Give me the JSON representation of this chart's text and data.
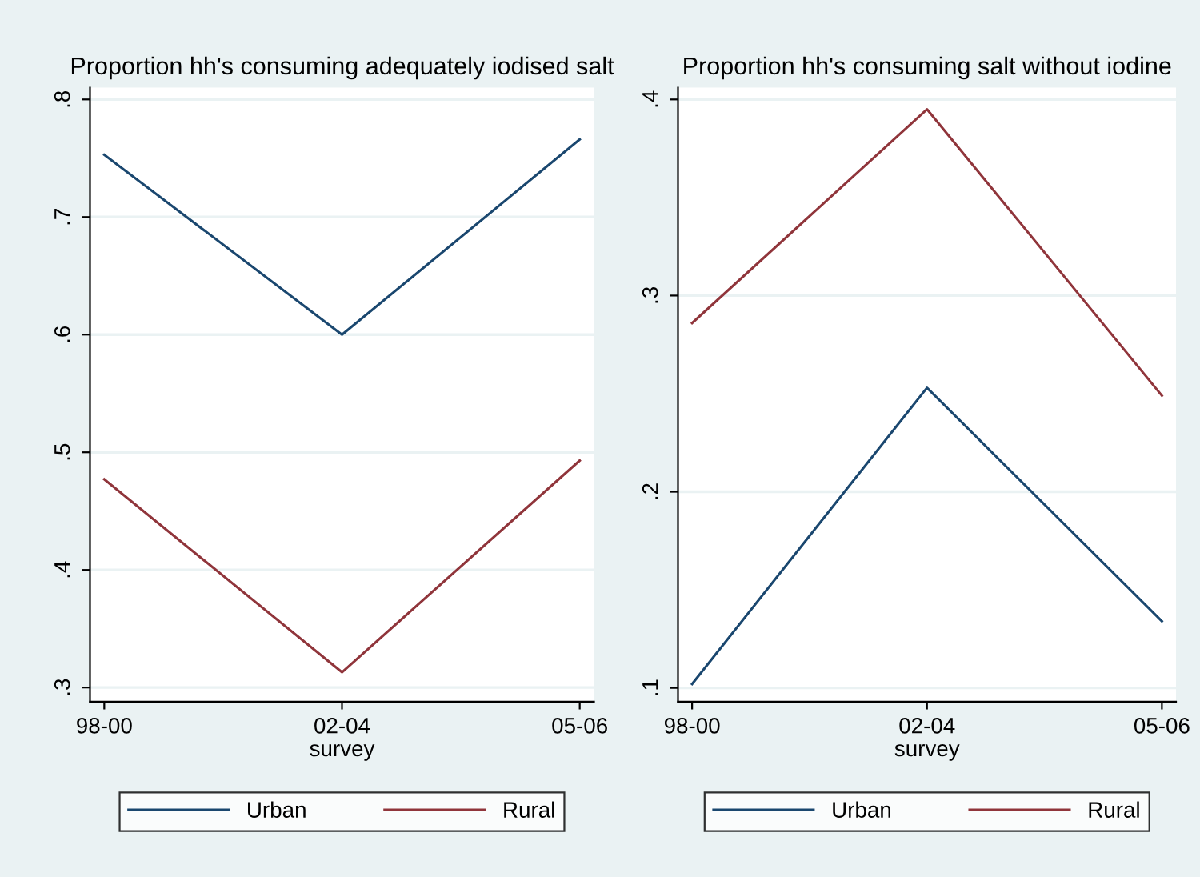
{
  "chart_data": [
    {
      "type": "line",
      "title": "Proportion hh's consuming adequately iodised salt",
      "xlabel": "survey",
      "categories": [
        "98-00",
        "02-04",
        "05-06"
      ],
      "series": [
        {
          "name": "Urban",
          "color": "#1a476f",
          "values": [
            0.753,
            0.6,
            0.766
          ]
        },
        {
          "name": "Rural",
          "color": "#90353b",
          "values": [
            0.477,
            0.313,
            0.493
          ]
        }
      ],
      "ylim": [
        0.288,
        0.81
      ],
      "yticks": [
        {
          "value": 0.3,
          "label": ".3"
        },
        {
          "value": 0.4,
          "label": ".4"
        },
        {
          "value": 0.5,
          "label": ".5"
        },
        {
          "value": 0.6,
          "label": ".6"
        },
        {
          "value": 0.7,
          "label": ".7"
        },
        {
          "value": 0.8,
          "label": ".8"
        }
      ],
      "grid": "y",
      "legend": "bottom"
    },
    {
      "type": "line",
      "title": "Proportion hh's consuming salt without iodine",
      "xlabel": "survey",
      "categories": [
        "98-00",
        "02-04",
        "05-06"
      ],
      "series": [
        {
          "name": "Urban",
          "color": "#1a476f",
          "values": [
            0.102,
            0.253,
            0.134
          ]
        },
        {
          "name": "Rural",
          "color": "#90353b",
          "values": [
            0.286,
            0.395,
            0.249
          ]
        }
      ],
      "ylim": [
        0.093,
        0.406
      ],
      "yticks": [
        {
          "value": 0.1,
          "label": ".1"
        },
        {
          "value": 0.2,
          "label": ".2"
        },
        {
          "value": 0.3,
          "label": ".3"
        },
        {
          "value": 0.4,
          "label": ".4"
        }
      ],
      "grid": "y",
      "legend": "bottom"
    }
  ]
}
